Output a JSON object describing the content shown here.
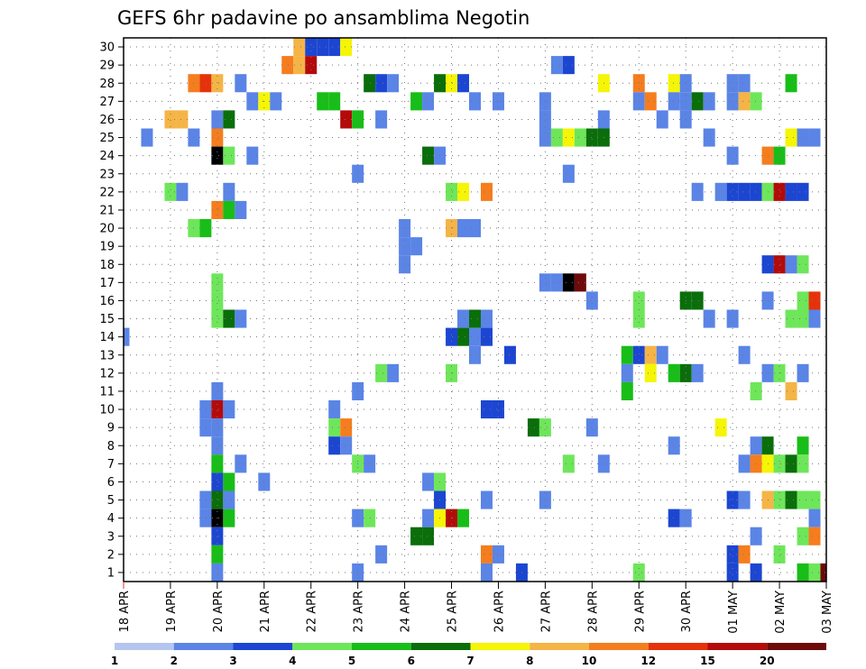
{
  "chart_data": {
    "type": "heatmap",
    "title": "GEFS 6hr padavine po ansamblima Negotin",
    "xlabel": "",
    "ylabel": "",
    "x_tick_labels": [
      "18 APR",
      "19 APR",
      "20 APR",
      "21 APR",
      "22 APR",
      "23 APR",
      "24 APR",
      "25 APR",
      "26 APR",
      "27 APR",
      "28 APR",
      "29 APR",
      "30 APR",
      "01 MAY",
      "02 MAY",
      "03 MAY"
    ],
    "xlim": [
      0,
      60
    ],
    "y_tick_labels": [
      "1",
      "2",
      "3",
      "4",
      "5",
      "6",
      "7",
      "8",
      "9",
      "10",
      "11",
      "12",
      "13",
      "14",
      "15",
      "16",
      "17",
      "18",
      "19",
      "20",
      "21",
      "22",
      "23",
      "24",
      "25",
      "26",
      "27",
      "28",
      "29",
      "30"
    ],
    "ylim": [
      0.5,
      30.5
    ],
    "grid": true,
    "legend": {
      "placement": "bottom",
      "labels": [
        "1",
        "2",
        "3",
        "4",
        "5",
        "6",
        "7",
        "8",
        "10",
        "12",
        "15",
        "20"
      ],
      "colors": [
        "#b4c6ef",
        "#5a84e6",
        "#1c46d2",
        "#6ee65a",
        "#18be18",
        "#0a6e0a",
        "#f5f505",
        "#f5b446",
        "#f57d1e",
        "#e6320a",
        "#b40a0a",
        "#6e0a0a"
      ]
    },
    "cells": [
      [
        15,
        30,
        7
      ],
      [
        16,
        30,
        2
      ],
      [
        17,
        30,
        2
      ],
      [
        18,
        30,
        2
      ],
      [
        19,
        30,
        6
      ],
      [
        14,
        29,
        8
      ],
      [
        15,
        29,
        7
      ],
      [
        16,
        29,
        10
      ],
      [
        37,
        29,
        1
      ],
      [
        38,
        29,
        2
      ],
      [
        6,
        28,
        8
      ],
      [
        7,
        28,
        9
      ],
      [
        10,
        28,
        1
      ],
      [
        8,
        28,
        7
      ],
      [
        21,
        28,
        5
      ],
      [
        22,
        28,
        2
      ],
      [
        23,
        28,
        1
      ],
      [
        27,
        28,
        5
      ],
      [
        28,
        28,
        6
      ],
      [
        29,
        28,
        2
      ],
      [
        41,
        28,
        6
      ],
      [
        44,
        28,
        8
      ],
      [
        47,
        28,
        6
      ],
      [
        48,
        28,
        1
      ],
      [
        53,
        28,
        1
      ],
      [
        52,
        28,
        1
      ],
      [
        57,
        28,
        4
      ],
      [
        11,
        27,
        1
      ],
      [
        12,
        27,
        6
      ],
      [
        13,
        27,
        1
      ],
      [
        17,
        27,
        4
      ],
      [
        18,
        27,
        4
      ],
      [
        25,
        27,
        4
      ],
      [
        26,
        27,
        1
      ],
      [
        30,
        27,
        1
      ],
      [
        32,
        27,
        1
      ],
      [
        36,
        27,
        1
      ],
      [
        44,
        27,
        1
      ],
      [
        48,
        27,
        1
      ],
      [
        45,
        27,
        8
      ],
      [
        47,
        27,
        1
      ],
      [
        49,
        27,
        5
      ],
      [
        50,
        27,
        1
      ],
      [
        52,
        27,
        1
      ],
      [
        53,
        27,
        7
      ],
      [
        54,
        27,
        3
      ],
      [
        4,
        26,
        7
      ],
      [
        5,
        26,
        7
      ],
      [
        8,
        26,
        1
      ],
      [
        9,
        26,
        5
      ],
      [
        19,
        26,
        10
      ],
      [
        20,
        26,
        4
      ],
      [
        22,
        26,
        1
      ],
      [
        36,
        26,
        1
      ],
      [
        41,
        26,
        1
      ],
      [
        46,
        26,
        1
      ],
      [
        48,
        26,
        1
      ],
      [
        2,
        25,
        1
      ],
      [
        6,
        25,
        1
      ],
      [
        8,
        25,
        8
      ],
      [
        36,
        25,
        1
      ],
      [
        37,
        25,
        3
      ],
      [
        38,
        25,
        6
      ],
      [
        39,
        25,
        3
      ],
      [
        40,
        25,
        5
      ],
      [
        41,
        25,
        5
      ],
      [
        50,
        25,
        1
      ],
      [
        57,
        25,
        6
      ],
      [
        58,
        25,
        1
      ],
      [
        59,
        25,
        1
      ],
      [
        8,
        24,
        12
      ],
      [
        9,
        24,
        3
      ],
      [
        11,
        24,
        1
      ],
      [
        26,
        24,
        5
      ],
      [
        27,
        24,
        1
      ],
      [
        52,
        24,
        1
      ],
      [
        55,
        24,
        8
      ],
      [
        56,
        24,
        4
      ],
      [
        20,
        23,
        1
      ],
      [
        38,
        23,
        1
      ],
      [
        4,
        22,
        3
      ],
      [
        5,
        22,
        1
      ],
      [
        9,
        22,
        1
      ],
      [
        28,
        22,
        3
      ],
      [
        29,
        22,
        6
      ],
      [
        31,
        22,
        8
      ],
      [
        49,
        22,
        1
      ],
      [
        51,
        22,
        1
      ],
      [
        52,
        22,
        2
      ],
      [
        53,
        22,
        2
      ],
      [
        54,
        22,
        2
      ],
      [
        55,
        22,
        3
      ],
      [
        56,
        22,
        10
      ],
      [
        57,
        22,
        2
      ],
      [
        58,
        22,
        2
      ],
      [
        8,
        21,
        8
      ],
      [
        9,
        21,
        4
      ],
      [
        10,
        21,
        1
      ],
      [
        6,
        20,
        3
      ],
      [
        7,
        20,
        4
      ],
      [
        24,
        20,
        1
      ],
      [
        28,
        20,
        7
      ],
      [
        29,
        20,
        1
      ],
      [
        30,
        20,
        1
      ],
      [
        24,
        19,
        1
      ],
      [
        25,
        19,
        1
      ],
      [
        24,
        18,
        1
      ],
      [
        55,
        18,
        2
      ],
      [
        56,
        18,
        10
      ],
      [
        57,
        18,
        1
      ],
      [
        58,
        18,
        3
      ],
      [
        8,
        17,
        3
      ],
      [
        36,
        17,
        1
      ],
      [
        37,
        17,
        1
      ],
      [
        38,
        17,
        12
      ],
      [
        39,
        17,
        11
      ],
      [
        8,
        16,
        3
      ],
      [
        40,
        16,
        1
      ],
      [
        44,
        16,
        3
      ],
      [
        48,
        16,
        5
      ],
      [
        49,
        16,
        5
      ],
      [
        55,
        16,
        1
      ],
      [
        58,
        16,
        3
      ],
      [
        59,
        16,
        9
      ],
      [
        8,
        15,
        3
      ],
      [
        9,
        15,
        5
      ],
      [
        10,
        15,
        1
      ],
      [
        29,
        15,
        1
      ],
      [
        30,
        15,
        5
      ],
      [
        31,
        15,
        1
      ],
      [
        44,
        15,
        3
      ],
      [
        50,
        15,
        1
      ],
      [
        52,
        15,
        1
      ],
      [
        57,
        15,
        3
      ],
      [
        58,
        15,
        3
      ],
      [
        59,
        15,
        1
      ],
      [
        0,
        14,
        1
      ],
      [
        28,
        14,
        2
      ],
      [
        29,
        14,
        5
      ],
      [
        30,
        14,
        1
      ],
      [
        31,
        14,
        2
      ],
      [
        30,
        13,
        1
      ],
      [
        33,
        13,
        2
      ],
      [
        43,
        13,
        4
      ],
      [
        44,
        13,
        2
      ],
      [
        45,
        13,
        7
      ],
      [
        46,
        13,
        1
      ],
      [
        53,
        13,
        1
      ],
      [
        22,
        12,
        3
      ],
      [
        23,
        12,
        1
      ],
      [
        28,
        12,
        3
      ],
      [
        43,
        12,
        1
      ],
      [
        45,
        12,
        6
      ],
      [
        47,
        12,
        4
      ],
      [
        48,
        12,
        5
      ],
      [
        49,
        12,
        1
      ],
      [
        55,
        12,
        1
      ],
      [
        56,
        12,
        3
      ],
      [
        58,
        12,
        1
      ],
      [
        8,
        11,
        1
      ],
      [
        20,
        11,
        1
      ],
      [
        43,
        11,
        4
      ],
      [
        54,
        11,
        3
      ],
      [
        57,
        11,
        7
      ],
      [
        7,
        10,
        1
      ],
      [
        8,
        10,
        10
      ],
      [
        9,
        10,
        1
      ],
      [
        18,
        10,
        1
      ],
      [
        31,
        10,
        2
      ],
      [
        32,
        10,
        2
      ],
      [
        7,
        9,
        1
      ],
      [
        8,
        9,
        1
      ],
      [
        18,
        9,
        3
      ],
      [
        19,
        9,
        8
      ],
      [
        35,
        9,
        5
      ],
      [
        36,
        9,
        3
      ],
      [
        40,
        9,
        1
      ],
      [
        51,
        9,
        6
      ],
      [
        8,
        8,
        1
      ],
      [
        18,
        8,
        2
      ],
      [
        19,
        8,
        1
      ],
      [
        47,
        8,
        1
      ],
      [
        54,
        8,
        1
      ],
      [
        55,
        8,
        5
      ],
      [
        58,
        8,
        4
      ],
      [
        8,
        7,
        4
      ],
      [
        10,
        7,
        1
      ],
      [
        20,
        7,
        3
      ],
      [
        21,
        7,
        1
      ],
      [
        38,
        7,
        3
      ],
      [
        41,
        7,
        1
      ],
      [
        53,
        7,
        1
      ],
      [
        54,
        7,
        8
      ],
      [
        55,
        7,
        6
      ],
      [
        56,
        7,
        3
      ],
      [
        57,
        7,
        5
      ],
      [
        58,
        7,
        3
      ],
      [
        8,
        6,
        2
      ],
      [
        9,
        6,
        4
      ],
      [
        12,
        6,
        1
      ],
      [
        26,
        6,
        1
      ],
      [
        27,
        6,
        3
      ],
      [
        7,
        5,
        1
      ],
      [
        8,
        5,
        5
      ],
      [
        9,
        5,
        1
      ],
      [
        27,
        5,
        2
      ],
      [
        31,
        5,
        1
      ],
      [
        36,
        5,
        1
      ],
      [
        52,
        5,
        2
      ],
      [
        53,
        5,
        1
      ],
      [
        55,
        5,
        7
      ],
      [
        56,
        5,
        3
      ],
      [
        57,
        5,
        5
      ],
      [
        58,
        5,
        3
      ],
      [
        59,
        5,
        3
      ],
      [
        7,
        4,
        1
      ],
      [
        8,
        4,
        12
      ],
      [
        9,
        4,
        4
      ],
      [
        20,
        4,
        1
      ],
      [
        21,
        4,
        3
      ],
      [
        26,
        4,
        1
      ],
      [
        27,
        4,
        6
      ],
      [
        28,
        4,
        10
      ],
      [
        29,
        4,
        4
      ],
      [
        47,
        4,
        2
      ],
      [
        48,
        4,
        1
      ],
      [
        59,
        4,
        1
      ],
      [
        8,
        3,
        2
      ],
      [
        25,
        3,
        5
      ],
      [
        26,
        3,
        5
      ],
      [
        54,
        3,
        1
      ],
      [
        58,
        3,
        3
      ],
      [
        59,
        3,
        8
      ],
      [
        8,
        2,
        4
      ],
      [
        22,
        2,
        1
      ],
      [
        31,
        2,
        8
      ],
      [
        32,
        2,
        1
      ],
      [
        52,
        2,
        2
      ],
      [
        53,
        2,
        8
      ],
      [
        56,
        2,
        3
      ],
      [
        8,
        1,
        1
      ],
      [
        20,
        1,
        1
      ],
      [
        31,
        1,
        1
      ],
      [
        34,
        1,
        2
      ],
      [
        44,
        1,
        3
      ],
      [
        52,
        1,
        2
      ],
      [
        54,
        1,
        2
      ],
      [
        58,
        1,
        4
      ],
      [
        59,
        1,
        3
      ],
      [
        60,
        1,
        11
      ]
    ]
  }
}
